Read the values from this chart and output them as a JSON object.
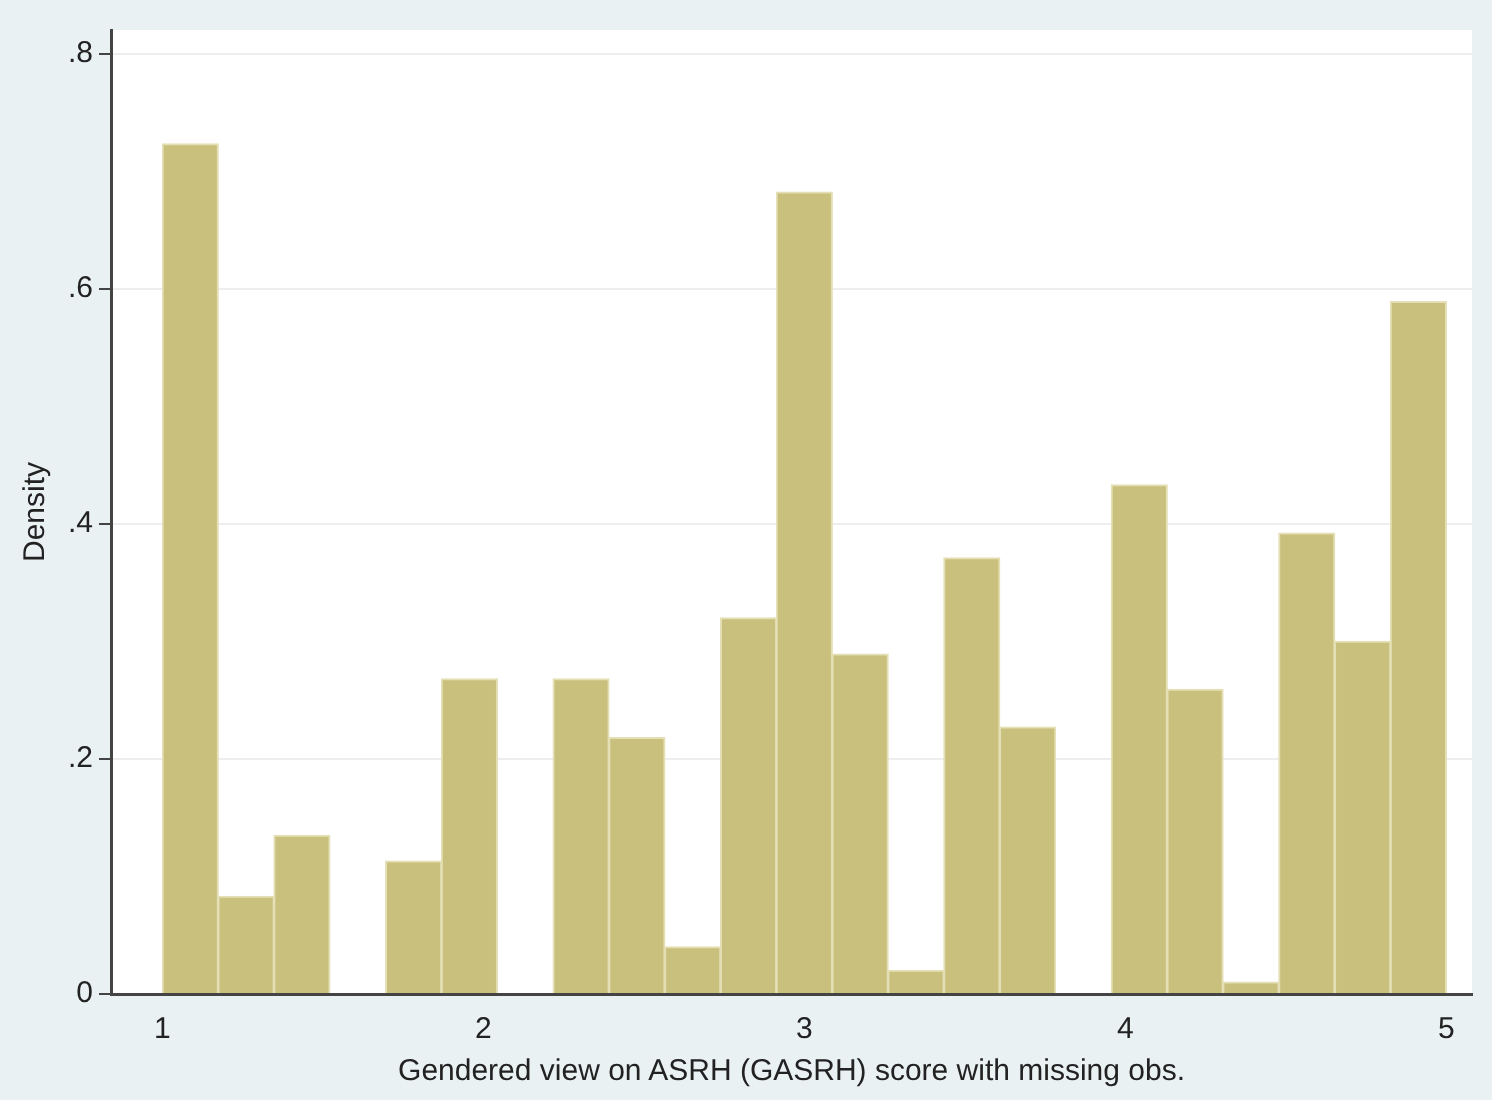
{
  "chart_data": {
    "type": "histogram",
    "xlabel": "Gendered view on ASRH (GASRH) score with missing obs.",
    "ylabel": "Density",
    "bins": [
      1,
      1.1739,
      1.3478,
      1.5217,
      1.6957,
      1.8696,
      2.0435,
      2.2174,
      2.3913,
      2.5652,
      2.7391,
      2.913,
      3.087,
      3.2609,
      3.4348,
      3.6087,
      3.7826,
      3.9565,
      4.1304,
      4.3043,
      4.4783,
      4.6522,
      4.8261,
      5
    ],
    "values": [
      0.723,
      0.083,
      0.135,
      0,
      0.113,
      0.268,
      0,
      0.268,
      0.218,
      0.04,
      0.32,
      0.682,
      0.289,
      0.02,
      0.371,
      0.227,
      0,
      0.433,
      0.259,
      0.01,
      0.392,
      0.3,
      0.589
    ],
    "color": "#c9c07e",
    "xlim": [
      0.84,
      5.08
    ],
    "xticks": [
      1,
      2,
      3,
      4,
      5
    ],
    "ylim": [
      0,
      0.82
    ],
    "yticks": [
      {
        "value": 0,
        "label": "0"
      },
      {
        "value": 0.2,
        "label": ".2"
      },
      {
        "value": 0.4,
        "label": ".4"
      },
      {
        "value": 0.6,
        "label": ".6"
      },
      {
        "value": 0.8,
        "label": ".8"
      }
    ],
    "grid": "y",
    "legend": false
  }
}
